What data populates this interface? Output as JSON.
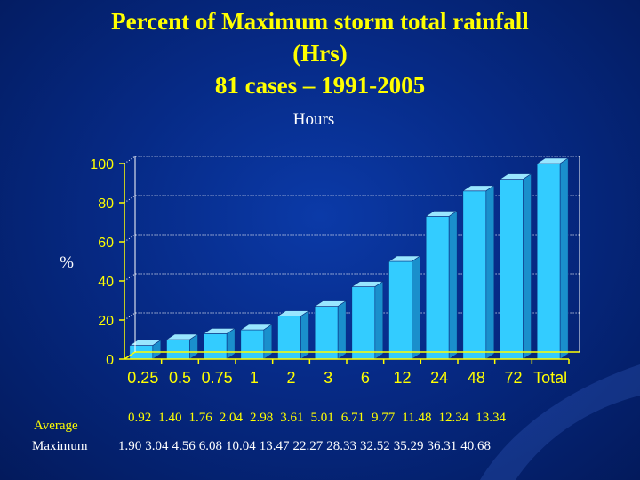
{
  "title_lines": [
    "Percent of Maximum storm total rainfall",
    "(Hrs)",
    "81 cases – 1991-2005"
  ],
  "colors": {
    "title": "#ffff00",
    "bar_front": "#33ccff",
    "bar_top": "#99e6ff",
    "bar_side": "#1a8fcc",
    "axis": "#ffff00"
  },
  "chart_data": {
    "type": "bar",
    "title": "Hours",
    "xlabel": "Hours",
    "ylabel": "%",
    "ylim": [
      0,
      100
    ],
    "yticks": [
      0,
      20,
      40,
      60,
      80,
      100
    ],
    "categories": [
      "0.25",
      "0.5",
      "0.75",
      "1",
      "2",
      "3",
      "6",
      "12",
      "24",
      "48",
      "72",
      "Total"
    ],
    "values": [
      7,
      10,
      13,
      15,
      22,
      27,
      37,
      50,
      73,
      86,
      92,
      100
    ]
  },
  "table": {
    "average_label": "Average",
    "average_values": [
      "0.92",
      "1.40",
      "1.76",
      "2.04",
      "2.98",
      "3.61",
      "5.01",
      "6.71",
      "9.77",
      "11.48",
      "12.34",
      "13.34"
    ],
    "maximum_label": "Maximum",
    "maximum_values": [
      "1.90",
      "3.04",
      "4.56",
      "6.08",
      "10.04",
      "13.47",
      "22.27",
      "28.33",
      "32.52",
      "35.29",
      "36.31",
      "40.68"
    ]
  }
}
